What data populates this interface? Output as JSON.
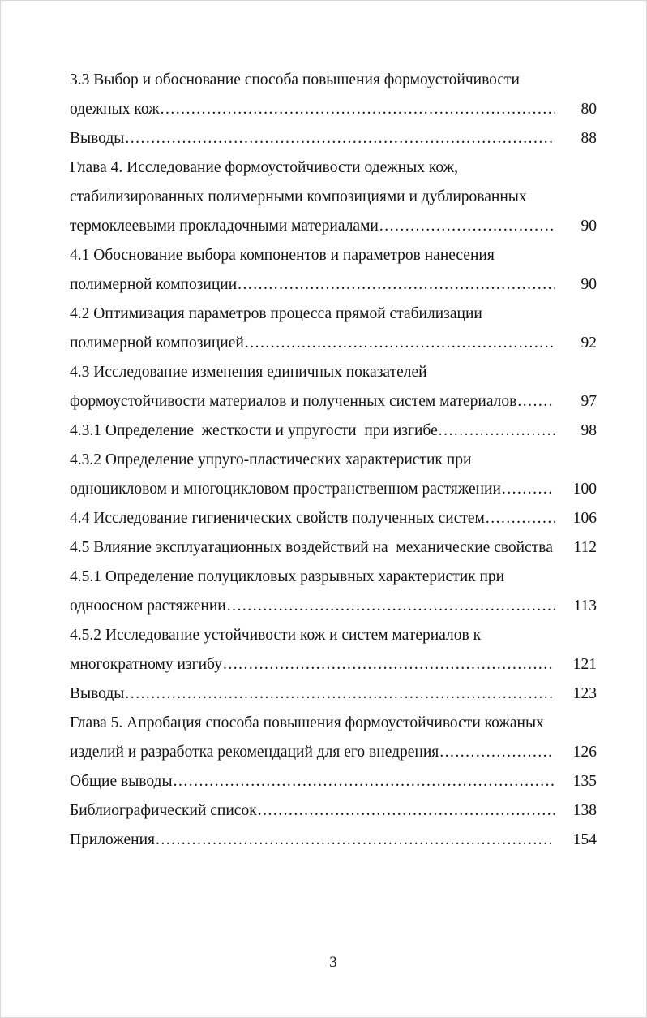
{
  "page": {
    "folio": "3"
  },
  "toc": {
    "entries": [
      {
        "text": "3.3 Выбор и обоснование способа повышения формоустойчивости",
        "page": ""
      },
      {
        "text": "одежных кож",
        "page": "80"
      },
      {
        "text": "Выводы",
        "page": "88"
      },
      {
        "text": "Глава 4. Исследование формоустойчивости одежных кож,",
        "page": ""
      },
      {
        "text": "стабилизированных полимерными композициями и дублированных",
        "page": ""
      },
      {
        "text": "термоклеевыми прокладочными материалами",
        "page": "90"
      },
      {
        "text": "4.1 Обоснование выбора компонентов и параметров нанесения",
        "page": ""
      },
      {
        "text": "полимерной композиции",
        "page": "90"
      },
      {
        "text": "4.2 Оптимизация параметров процесса прямой стабилизации",
        "page": ""
      },
      {
        "text": "полимерной композицией",
        "page": "92"
      },
      {
        "text": "4.3 Исследование изменения единичных показателей",
        "page": ""
      },
      {
        "text": "формоустойчивости материалов и полученных систем материалов",
        "page": "97"
      },
      {
        "text": "4.3.1 Определение  жесткости и упругости  при изгибе",
        "page": "98"
      },
      {
        "text": "4.3.2 Определение упруго-пластических характеристик при",
        "page": ""
      },
      {
        "text": "одноцикловом и многоцикловом пространственном растяжении",
        "page": "100"
      },
      {
        "text": "4.4 Исследование гигиенических свойств полученных систем",
        "page": "106"
      },
      {
        "text": "4.5 Влияние эксплуатационных воздействий на  механические свойства",
        "page": "112"
      },
      {
        "text": "4.5.1 Определение полуцикловых разрывных характеристик при",
        "page": ""
      },
      {
        "text": "одноосном растяжении",
        "page": "113"
      },
      {
        "text": "4.5.2 Исследование устойчивости кож и систем материалов к",
        "page": ""
      },
      {
        "text": "многократному изгибу",
        "page": "121"
      },
      {
        "text": "Выводы",
        "page": "123"
      },
      {
        "text": "Глава 5. Апробация способа повышения формоустойчивости кожаных",
        "page": ""
      },
      {
        "text": "изделий и разработка рекомендаций для его внедрения",
        "page": "126"
      },
      {
        "text": "Общие выводы",
        "page": "135"
      },
      {
        "text": "Библиографический список",
        "page": "138"
      },
      {
        "text": "Приложения",
        "page": "154"
      }
    ]
  }
}
